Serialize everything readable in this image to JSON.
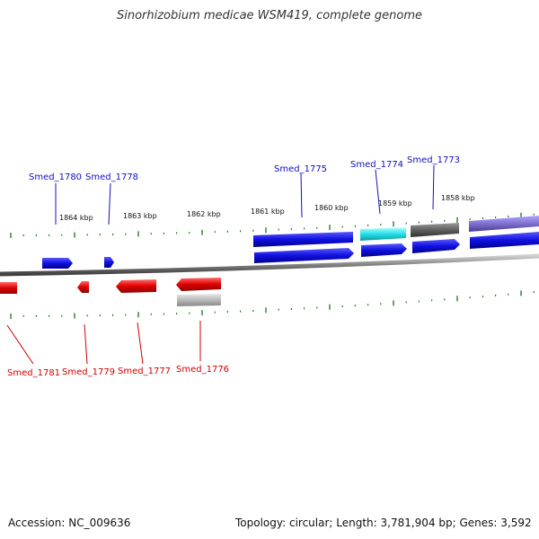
{
  "title": "Sinorhizobium medicae WSM419, complete genome",
  "footer": {
    "accession": "Accession: NC_009636",
    "summary": "Topology: circular; Length: 3,781,904 bp; Genes: 3,592"
  },
  "colors": {
    "forward_gene": "#1010e0",
    "reverse_gene": "#e00000",
    "tick": "#2a7a2a",
    "axis": "#808080",
    "cyan_gene": "#22e0e8",
    "dark_gray_gene": "#606060",
    "light_gray_gene": "#b8b8b8",
    "purple_gene": "#8070d0"
  },
  "scale_labels": [
    "1864 kbp",
    "1863 kbp",
    "1862 kbp",
    "1861 kbp",
    "1860 kbp",
    "1859 kbp",
    "1858 kbp"
  ],
  "forward_labels": [
    "Smed_1780",
    "Smed_1778",
    "Smed_1775",
    "Smed_1774",
    "Smed_1773"
  ],
  "reverse_labels": [
    "Smed_1781",
    "Smed_1779",
    "Smed_1777",
    "Smed_1776"
  ]
}
